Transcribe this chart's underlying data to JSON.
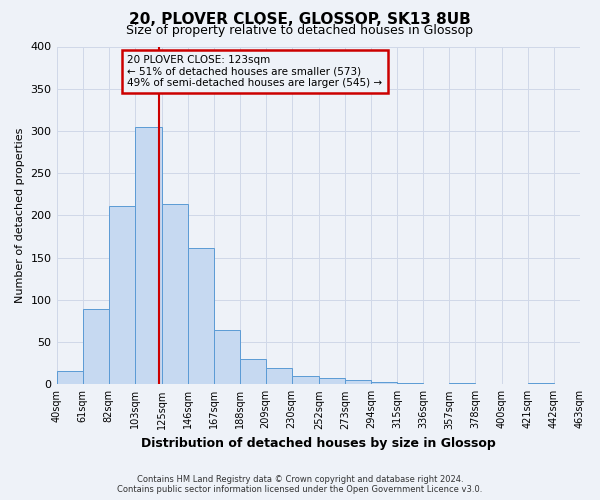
{
  "title": "20, PLOVER CLOSE, GLOSSOP, SK13 8UB",
  "subtitle": "Size of property relative to detached houses in Glossop",
  "xlabel": "Distribution of detached houses by size in Glossop",
  "ylabel": "Number of detached properties",
  "bin_edges": [
    40,
    61,
    82,
    103,
    125,
    146,
    167,
    188,
    209,
    230,
    252,
    273,
    294,
    315,
    336,
    357,
    378,
    400,
    421,
    442,
    463
  ],
  "bin_labels": [
    "40sqm",
    "61sqm",
    "82sqm",
    "103sqm",
    "125sqm",
    "146sqm",
    "167sqm",
    "188sqm",
    "209sqm",
    "230sqm",
    "252sqm",
    "273sqm",
    "294sqm",
    "315sqm",
    "336sqm",
    "357sqm",
    "378sqm",
    "400sqm",
    "421sqm",
    "442sqm",
    "463sqm"
  ],
  "counts": [
    16,
    89,
    211,
    305,
    214,
    161,
    64,
    30,
    19,
    10,
    7,
    5,
    3,
    1,
    0,
    2,
    0,
    0,
    1,
    0,
    2
  ],
  "bar_facecolor": "#c6d9f1",
  "bar_edgecolor": "#5b9bd5",
  "property_line_x": 123,
  "property_line_color": "#cc0000",
  "annotation_title": "20 PLOVER CLOSE: 123sqm",
  "annotation_line1": "← 51% of detached houses are smaller (573)",
  "annotation_line2": "49% of semi-detached houses are larger (545) →",
  "annotation_box_edgecolor": "#cc0000",
  "ylim": [
    0,
    400
  ],
  "yticks": [
    0,
    50,
    100,
    150,
    200,
    250,
    300,
    350,
    400
  ],
  "grid_color": "#d0d8e8",
  "footer1": "Contains HM Land Registry data © Crown copyright and database right 2024.",
  "footer2": "Contains public sector information licensed under the Open Government Licence v3.0.",
  "background_color": "#eef2f8"
}
